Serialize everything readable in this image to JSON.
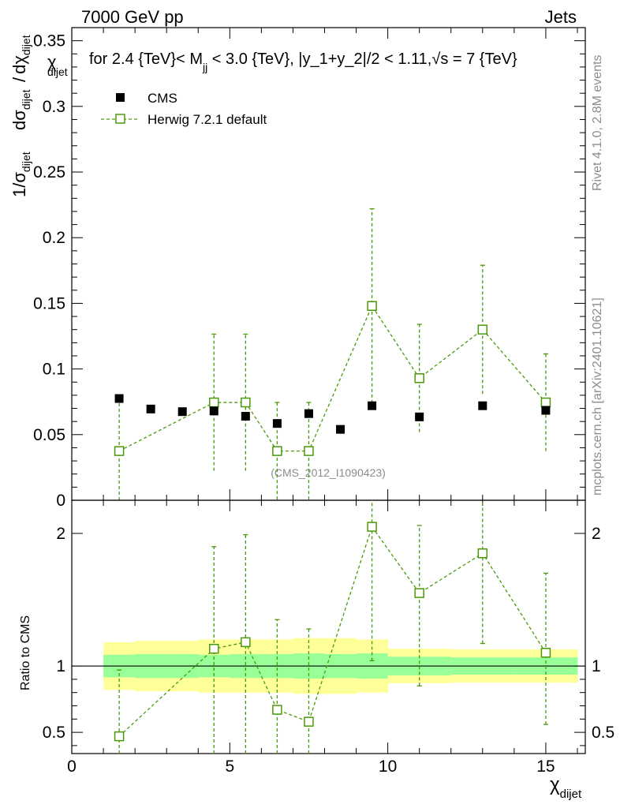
{
  "header": {
    "left": "7000 GeV pp",
    "right": "Jets"
  },
  "title": {
    "text1": "for 2.4 {TeV}< M",
    "sub1": "jj",
    "text2": " < 3.0 {TeV}, |y_1+y_2|/2 < 1.11,",
    "sqrt": "√",
    "text3": "s = 7 {TeV}"
  },
  "ylabel_top": {
    "left_main": "1/σ",
    "left_sub": "dijet",
    "chi_main": "χ",
    "chi_sub": "dijet",
    "d_sigma": "dσ",
    "d_sigma_sub": "dijet",
    "slash": "/",
    "d_chi": "dχ",
    "d_chi_sub": "dijet"
  },
  "ylabel_bottom": "Ratio to CMS",
  "xlabel": {
    "main": "χ",
    "sub": "dijet"
  },
  "side_labels": {
    "rivet": "Rivet 4.1.0,  2.8M events",
    "mcplots": "mcplots.cern.ch [arXiv:2401.10621]"
  },
  "watermark": "(CMS_2012_I1090423)",
  "legend": [
    {
      "label": "CMS",
      "marker": "filled-square",
      "color": "#000000"
    },
    {
      "label": "Herwig 7.2.1 default",
      "marker": "open-square",
      "color": "#4a9a08"
    }
  ],
  "colors": {
    "mc": "#4a9a08",
    "band_inner": "#99ff99",
    "band_outer": "#ffff99",
    "data": "#000000"
  },
  "chart_data": [
    {
      "type": "scatter",
      "panel": "main",
      "xlim": [
        0,
        16.25
      ],
      "ylim": [
        0,
        0.36
      ],
      "yticks": [
        0,
        0.05,
        0.1,
        0.15,
        0.2,
        0.25,
        0.3,
        0.35
      ],
      "yticklabels": [
        "0",
        "0.05",
        "0.1",
        "0.15",
        "0.2",
        "0.25",
        "0.3",
        "0.35"
      ],
      "series": [
        {
          "name": "CMS",
          "x": [
            1.5,
            2.5,
            3.5,
            4.5,
            5.5,
            6.5,
            7.5,
            8.5,
            9.5,
            11,
            13,
            15
          ],
          "y": [
            0.0775,
            0.0695,
            0.0675,
            0.068,
            0.064,
            0.0585,
            0.066,
            0.054,
            0.072,
            0.0635,
            0.072,
            0.0685
          ]
        },
        {
          "name": "Herwig 7.2.1 default",
          "x": [
            1.5,
            4.5,
            5.5,
            6.5,
            7.5,
            9.5,
            11,
            13,
            15
          ],
          "y": [
            0.0375,
            0.0745,
            0.0745,
            0.0375,
            0.0375,
            0.148,
            0.093,
            0.13,
            0.0745
          ],
          "yerr": [
            0.04,
            0.052,
            0.052,
            0.037,
            0.037,
            0.074,
            0.041,
            0.049,
            0.037
          ]
        }
      ]
    },
    {
      "type": "scatter",
      "panel": "ratio",
      "ylabel": "Ratio to CMS",
      "xlabel": "χdijet",
      "xlim": [
        0,
        16.25
      ],
      "ylim": [
        0.34,
        2.25
      ],
      "xticks": [
        0,
        5,
        10,
        15
      ],
      "xticklabels": [
        "0",
        "5",
        "10",
        "15"
      ],
      "yticks": [
        0.5,
        1,
        2
      ],
      "yticklabels": [
        "0.5",
        "1",
        "2"
      ],
      "bands": {
        "edges": [
          1,
          2,
          3,
          4,
          5,
          6,
          7,
          8,
          9,
          10,
          12,
          14,
          16
        ],
        "inner_low": [
          0.915,
          0.91,
          0.91,
          0.915,
          0.91,
          0.91,
          0.905,
          0.91,
          0.905,
          0.93,
          0.935,
          0.935
        ],
        "inner_high": [
          1.085,
          1.09,
          1.09,
          1.085,
          1.09,
          1.09,
          1.095,
          1.09,
          1.095,
          1.07,
          1.065,
          1.065
        ],
        "outer_low": [
          0.82,
          0.81,
          0.81,
          0.8,
          0.8,
          0.8,
          0.79,
          0.79,
          0.8,
          0.87,
          0.875,
          0.875
        ],
        "outer_high": [
          1.18,
          1.19,
          1.19,
          1.2,
          1.2,
          1.2,
          1.21,
          1.21,
          1.2,
          1.13,
          1.125,
          1.125
        ]
      },
      "series": [
        {
          "name": "Herwig 7.2.1 default",
          "x": [
            1.5,
            4.5,
            5.5,
            6.5,
            7.5,
            9.5,
            11,
            13,
            15
          ],
          "y": [
            0.47,
            1.13,
            1.18,
            0.67,
            0.58,
            2.05,
            1.55,
            1.85,
            1.1
          ],
          "ylo": [
            0.0,
            0.0,
            0.0,
            0.0,
            0.0,
            1.04,
            0.85,
            1.17,
            0.56
          ],
          "yhi": [
            0.97,
            1.9,
            1.99,
            1.35,
            1.28,
            2.3,
            2.06,
            2.3,
            1.7
          ]
        }
      ]
    }
  ]
}
